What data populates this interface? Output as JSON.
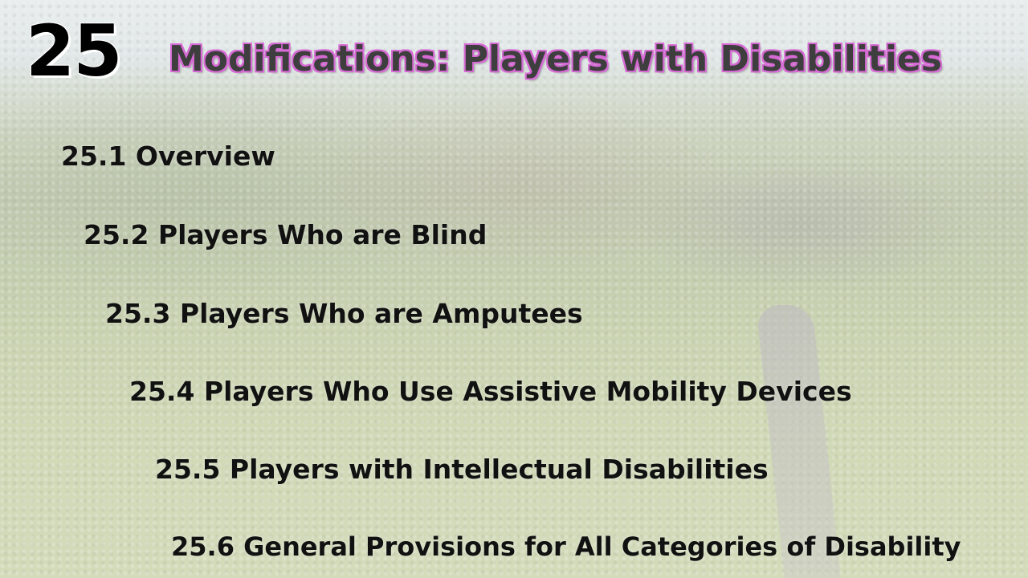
{
  "slide": {
    "chapter_number": "25",
    "title": "Modifications: Players with Disabilities",
    "items": [
      "25.1 Overview",
      "25.2 Players Who are Blind",
      "25.3 Players Who are Amputees",
      "25.4 Players Who Use Assistive Mobility Devices",
      "25.5 Players with Intellectual Disabilities",
      "25.6 General Provisions for All Categories of Disability"
    ]
  },
  "colors": {
    "title_text": "#3e3e3e",
    "title_outline": "#d66ad4",
    "item_text": "#111111",
    "number_text": "#000000"
  }
}
